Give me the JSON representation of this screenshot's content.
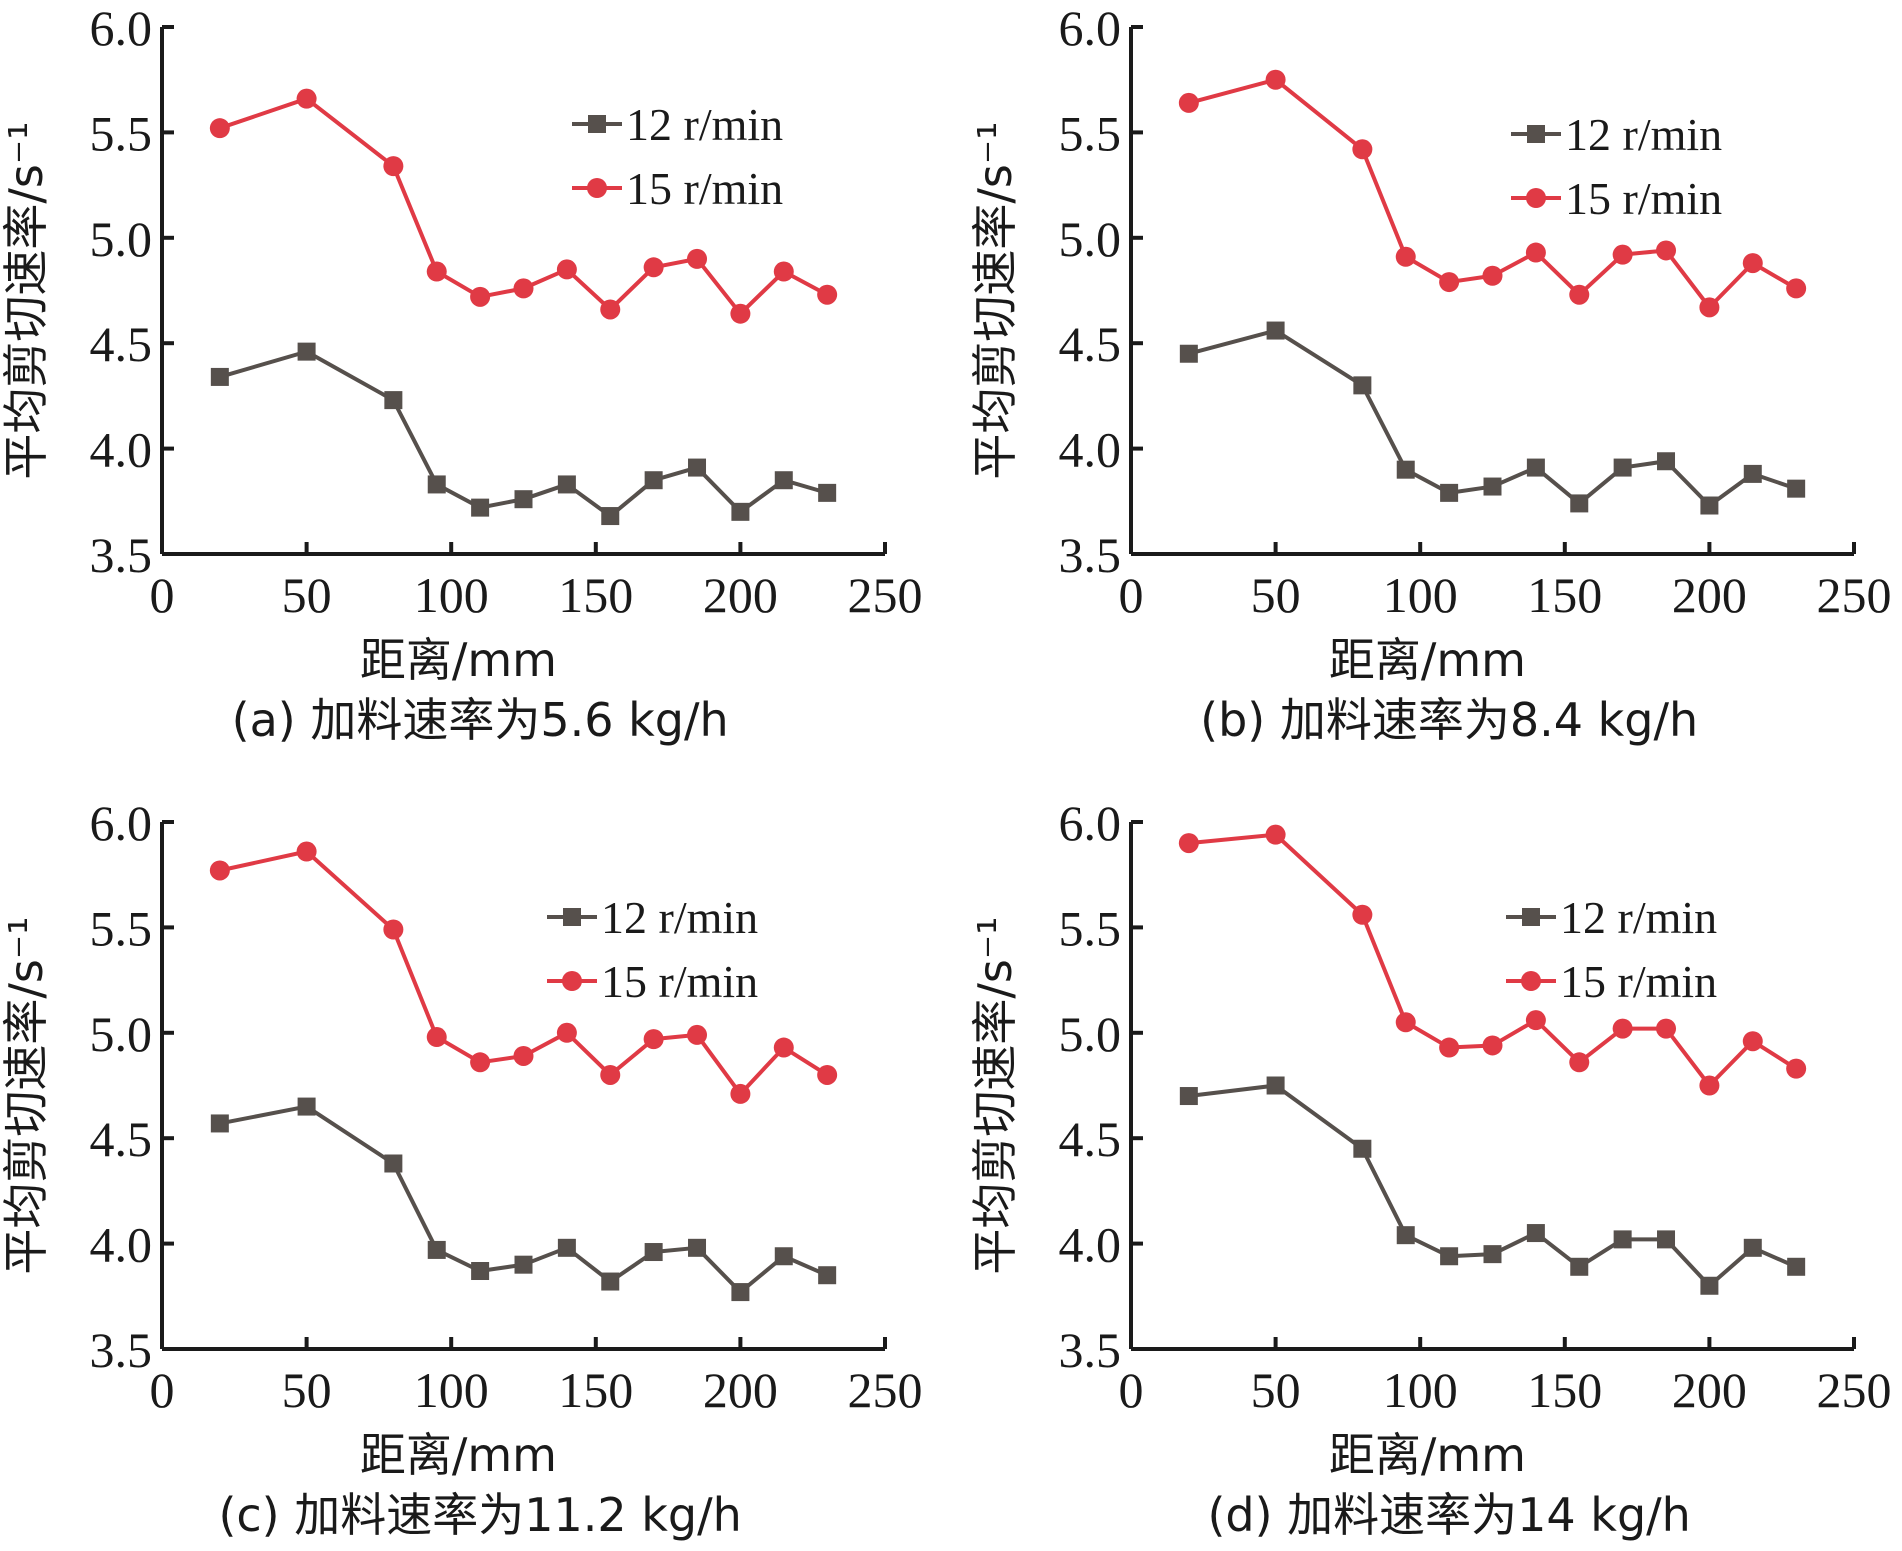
{
  "chart_data": [
    {
      "type": "line",
      "panel": "a",
      "title": "(a) 加料速率为5.6 kg/h",
      "xlabel": "距离/mm",
      "ylabel": "平均剪切速率/s⁻¹",
      "xlim": [
        0,
        250
      ],
      "ylim": [
        3.5,
        6.0
      ],
      "xticks": [
        "0",
        "50",
        "100",
        "150",
        "200",
        "250"
      ],
      "yticks": [
        "3.5",
        "4.0",
        "4.5",
        "5.0",
        "5.5",
        "6.0"
      ],
      "grid": false,
      "legend_position": "top-right",
      "x": [
        20,
        50,
        80,
        95,
        110,
        125,
        140,
        155,
        170,
        185,
        200,
        215,
        230
      ],
      "series": [
        {
          "name": "12 r/min",
          "marker": "square",
          "color": "#56504c",
          "values": [
            4.34,
            4.46,
            4.23,
            3.83,
            3.72,
            3.76,
            3.83,
            3.68,
            3.85,
            3.91,
            3.7,
            3.85,
            3.79
          ]
        },
        {
          "name": "15 r/min",
          "marker": "circle",
          "color": "#e03a45",
          "values": [
            5.52,
            5.66,
            5.34,
            4.84,
            4.72,
            4.76,
            4.85,
            4.66,
            4.86,
            4.9,
            4.64,
            4.84,
            4.73
          ]
        }
      ]
    },
    {
      "type": "line",
      "panel": "b",
      "title": "(b) 加料速率为8.4 kg/h",
      "xlabel": "距离/mm",
      "ylabel": "平均剪切速率/s⁻¹",
      "xlim": [
        0,
        250
      ],
      "ylim": [
        3.5,
        6.0
      ],
      "xticks": [
        "0",
        "50",
        "100",
        "150",
        "200",
        "250"
      ],
      "yticks": [
        "3.5",
        "4.0",
        "4.5",
        "5.0",
        "5.5",
        "6.0"
      ],
      "grid": false,
      "legend_position": "top-right",
      "x": [
        20,
        50,
        80,
        95,
        110,
        125,
        140,
        155,
        170,
        185,
        200,
        215,
        230
      ],
      "series": [
        {
          "name": "12 r/min",
          "marker": "square",
          "color": "#56504c",
          "values": [
            4.45,
            4.56,
            4.3,
            3.9,
            3.79,
            3.82,
            3.91,
            3.74,
            3.91,
            3.94,
            3.73,
            3.88,
            3.81
          ]
        },
        {
          "name": "15 r/min",
          "marker": "circle",
          "color": "#e03a45",
          "values": [
            5.64,
            5.75,
            5.42,
            4.91,
            4.79,
            4.82,
            4.93,
            4.73,
            4.92,
            4.94,
            4.67,
            4.88,
            4.76
          ]
        }
      ]
    },
    {
      "type": "line",
      "panel": "c",
      "title": "(c) 加料速率为11.2 kg/h",
      "xlabel": "距离/mm",
      "ylabel": "平均剪切速率/s⁻¹",
      "xlim": [
        0,
        250
      ],
      "ylim": [
        3.5,
        6.0
      ],
      "xticks": [
        "0",
        "50",
        "100",
        "150",
        "200",
        "250"
      ],
      "yticks": [
        "3.5",
        "4.0",
        "4.5",
        "5.0",
        "5.5",
        "6.0"
      ],
      "grid": false,
      "legend_position": "top-right",
      "x": [
        20,
        50,
        80,
        95,
        110,
        125,
        140,
        155,
        170,
        185,
        200,
        215,
        230
      ],
      "series": [
        {
          "name": "12 r/min",
          "marker": "square",
          "color": "#56504c",
          "values": [
            4.57,
            4.65,
            4.38,
            3.97,
            3.87,
            3.9,
            3.98,
            3.82,
            3.96,
            3.98,
            3.77,
            3.94,
            3.85
          ]
        },
        {
          "name": "15 r/min",
          "marker": "circle",
          "color": "#e03a45",
          "values": [
            5.77,
            5.86,
            5.49,
            4.98,
            4.86,
            4.89,
            5.0,
            4.8,
            4.97,
            4.99,
            4.71,
            4.93,
            4.8
          ]
        }
      ]
    },
    {
      "type": "line",
      "panel": "d",
      "title": "(d) 加料速率为14 kg/h",
      "xlabel": "距离/mm",
      "ylabel": "平均剪切速率/s⁻¹",
      "xlim": [
        0,
        250
      ],
      "ylim": [
        3.5,
        6.0
      ],
      "xticks": [
        "0",
        "50",
        "100",
        "150",
        "200",
        "250"
      ],
      "yticks": [
        "3.5",
        "4.0",
        "4.5",
        "5.0",
        "5.5",
        "6.0"
      ],
      "grid": false,
      "legend_position": "top-right",
      "x": [
        20,
        50,
        80,
        95,
        110,
        125,
        140,
        155,
        170,
        185,
        200,
        215,
        230
      ],
      "series": [
        {
          "name": "12 r/min",
          "marker": "square",
          "color": "#56504c",
          "values": [
            4.7,
            4.75,
            4.45,
            4.04,
            3.94,
            3.95,
            4.05,
            3.89,
            4.02,
            4.02,
            3.8,
            3.98,
            3.89
          ]
        },
        {
          "name": "15 r/min",
          "marker": "circle",
          "color": "#e03a45",
          "values": [
            5.9,
            5.94,
            5.56,
            5.05,
            4.93,
            4.94,
            5.06,
            4.86,
            5.02,
            5.02,
            4.75,
            4.96,
            4.83
          ]
        }
      ]
    }
  ]
}
